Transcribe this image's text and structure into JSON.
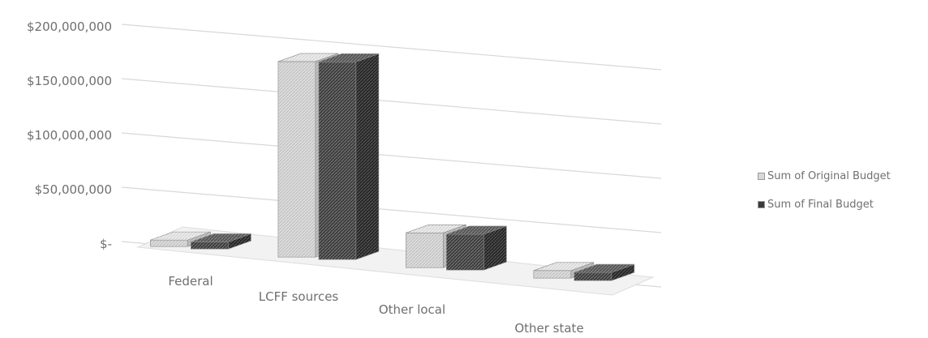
{
  "chart_data": {
    "type": "bar",
    "categories": [
      "Federal",
      "LCFF sources",
      "Other local",
      "Other state"
    ],
    "y_tick_labels": [
      "$-",
      "$50,000,000",
      "$100,000,000",
      "$150,000,000",
      "$200,000,000"
    ],
    "ylim": [
      0,
      200000000
    ],
    "series": [
      {
        "name": "Sum of Original Budget",
        "color": "#d6d6d6",
        "values": [
          6000000,
          180000000,
          32000000,
          7000000
        ]
      },
      {
        "name": "Sum of Final Budget",
        "color": "#3a3a3a",
        "values": [
          6500000,
          182000000,
          33000000,
          7500000
        ]
      }
    ],
    "grid": true,
    "legend_position": "right",
    "style": "3d-clustered-column"
  }
}
